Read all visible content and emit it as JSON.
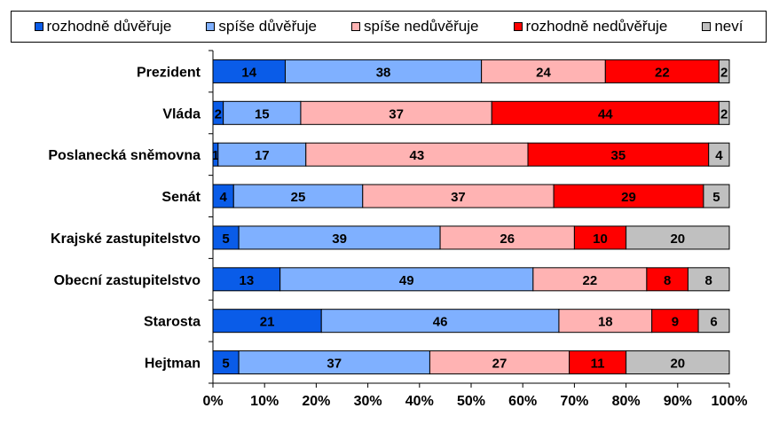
{
  "chart_data": {
    "type": "bar",
    "orientation": "horizontal",
    "stacked": true,
    "categories": [
      "Prezident",
      "Vláda",
      "Poslanecká sněmovna",
      "Senát",
      "Krajské zastupitelstvo",
      "Obecní zastupitelstvo",
      "Starosta",
      "Hejtman"
    ],
    "series": [
      {
        "name": "rozhodně důvěřuje",
        "color": "#0a5ce8",
        "values": [
          14,
          2,
          1,
          4,
          5,
          13,
          21,
          5
        ]
      },
      {
        "name": "spíše důvěřuje",
        "color": "#7fb0ff",
        "values": [
          38,
          15,
          17,
          25,
          39,
          49,
          46,
          37
        ]
      },
      {
        "name": "spíše nedůvěřuje",
        "color": "#ffb3b3",
        "values": [
          24,
          37,
          43,
          37,
          26,
          22,
          18,
          27
        ]
      },
      {
        "name": "rozhodně nedůvěřuje",
        "color": "#ff0000",
        "values": [
          22,
          44,
          35,
          29,
          10,
          8,
          9,
          11
        ]
      },
      {
        "name": "neví",
        "color": "#c0c0c0",
        "values": [
          2,
          2,
          4,
          5,
          20,
          8,
          6,
          20
        ]
      }
    ],
    "x_ticks": [
      "0%",
      "10%",
      "20%",
      "30%",
      "40%",
      "50%",
      "60%",
      "70%",
      "80%",
      "90%",
      "100%"
    ],
    "xlim": [
      0,
      100
    ],
    "title": "",
    "xlabel": "",
    "ylabel": "",
    "grid": false,
    "legend_position": "top"
  }
}
